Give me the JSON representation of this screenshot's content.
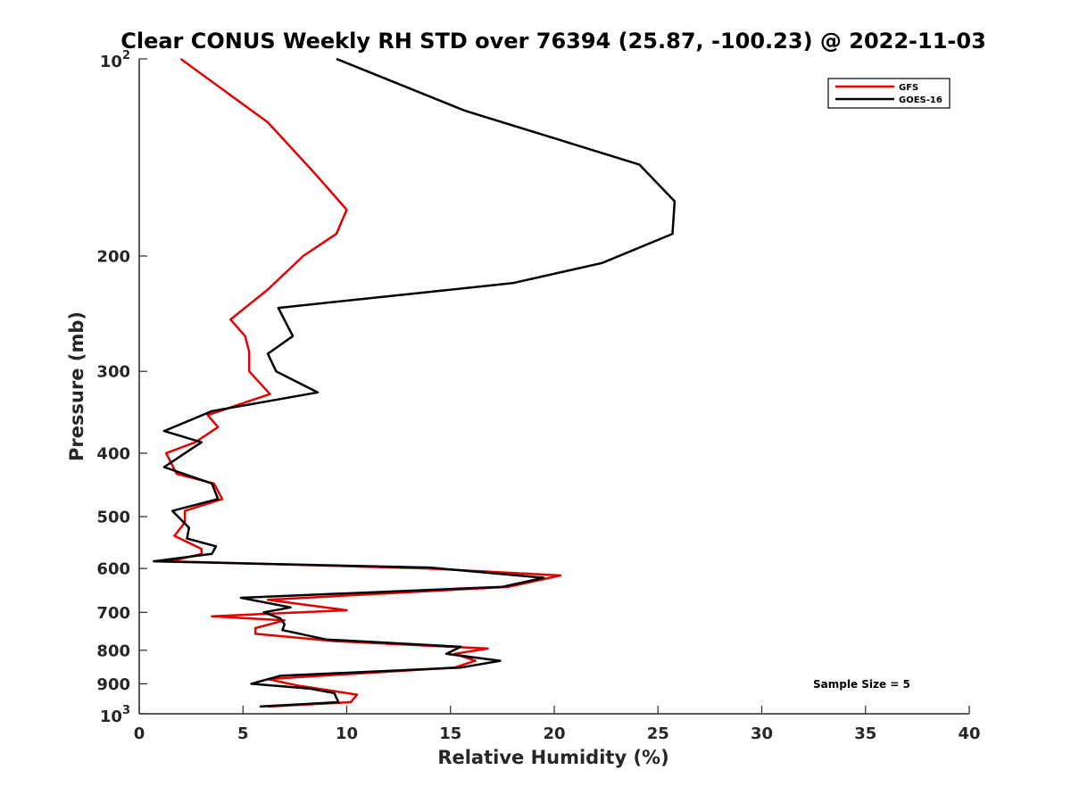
{
  "chart_data": {
    "type": "line",
    "title": "Clear CONUS Weekly RH STD over 76394 (25.87, -100.23) @ 2022-11-03",
    "xlabel": "Relative Humidity (%)",
    "ylabel": "Pressure (mb)",
    "xlim": [
      0,
      40
    ],
    "ylim": [
      100,
      1000
    ],
    "y_scale": "log",
    "y_reversed": true,
    "xticks": [
      0,
      5,
      10,
      15,
      20,
      25,
      30,
      35,
      40
    ],
    "xtick_labels": [
      "0",
      "5",
      "10",
      "15",
      "20",
      "25",
      "30",
      "35",
      "40"
    ],
    "yticks": [
      {
        "value": 100,
        "base": "10",
        "exp": "2"
      },
      {
        "value": 200,
        "label": "200"
      },
      {
        "value": 300,
        "label": "300"
      },
      {
        "value": 400,
        "label": "400"
      },
      {
        "value": 500,
        "label": "500"
      },
      {
        "value": 600,
        "label": "600"
      },
      {
        "value": 700,
        "label": "700"
      },
      {
        "value": 800,
        "label": "800"
      },
      {
        "value": 900,
        "label": "900"
      },
      {
        "value": 1000,
        "base": "10",
        "exp": "3"
      }
    ],
    "grid": false,
    "legend_position": "top-right",
    "annotation": "Sample Size = 5",
    "series": [
      {
        "name": "GFS",
        "color": "#e00000",
        "points": [
          [
            2.0,
            100
          ],
          [
            6.2,
            125
          ],
          [
            8.5,
            150
          ],
          [
            10.0,
            170
          ],
          [
            9.5,
            185
          ],
          [
            7.9,
            200
          ],
          [
            6.2,
            225
          ],
          [
            4.4,
            250
          ],
          [
            5.1,
            265
          ],
          [
            5.3,
            280
          ],
          [
            5.3,
            300
          ],
          [
            6.3,
            325
          ],
          [
            3.3,
            350
          ],
          [
            3.8,
            365
          ],
          [
            2.7,
            385
          ],
          [
            1.3,
            400
          ],
          [
            1.8,
            430
          ],
          [
            3.6,
            445
          ],
          [
            4.0,
            470
          ],
          [
            2.2,
            490
          ],
          [
            2.2,
            510
          ],
          [
            1.7,
            535
          ],
          [
            3.0,
            560
          ],
          [
            3.0,
            570
          ],
          [
            1.5,
            585
          ],
          [
            14.0,
            600
          ],
          [
            20.3,
            615
          ],
          [
            17.8,
            640
          ],
          [
            6.2,
            670
          ],
          [
            10.0,
            695
          ],
          [
            3.5,
            710
          ],
          [
            7.0,
            720
          ],
          [
            5.6,
            740
          ],
          [
            5.6,
            755
          ],
          [
            9.5,
            775
          ],
          [
            16.8,
            795
          ],
          [
            15.2,
            810
          ],
          [
            16.2,
            830
          ],
          [
            15.2,
            850
          ],
          [
            6.2,
            885
          ],
          [
            7.6,
            905
          ],
          [
            10.5,
            935
          ],
          [
            10.2,
            960
          ],
          [
            6.2,
            975
          ]
        ]
      },
      {
        "name": "GOES-16",
        "color": "#000000",
        "points": [
          [
            9.5,
            100
          ],
          [
            15.7,
            120
          ],
          [
            24.1,
            145
          ],
          [
            25.8,
            165
          ],
          [
            25.7,
            185
          ],
          [
            22.3,
            205
          ],
          [
            18.0,
            220
          ],
          [
            6.7,
            240
          ],
          [
            7.4,
            265
          ],
          [
            6.2,
            282
          ],
          [
            6.6,
            300
          ],
          [
            8.6,
            323
          ],
          [
            3.5,
            345
          ],
          [
            1.2,
            370
          ],
          [
            3.0,
            385
          ],
          [
            2.2,
            400
          ],
          [
            1.2,
            420
          ],
          [
            3.5,
            445
          ],
          [
            3.8,
            470
          ],
          [
            1.6,
            490
          ],
          [
            2.4,
            520
          ],
          [
            2.3,
            540
          ],
          [
            3.7,
            555
          ],
          [
            3.5,
            570
          ],
          [
            0.7,
            585
          ],
          [
            14.0,
            598
          ],
          [
            19.5,
            620
          ],
          [
            17.5,
            640
          ],
          [
            4.9,
            665
          ],
          [
            7.3,
            688
          ],
          [
            6.0,
            700
          ],
          [
            6.8,
            715
          ],
          [
            7.0,
            730
          ],
          [
            6.9,
            745
          ],
          [
            9.0,
            770
          ],
          [
            15.5,
            790
          ],
          [
            14.8,
            810
          ],
          [
            17.4,
            830
          ],
          [
            15.5,
            850
          ],
          [
            6.8,
            875
          ],
          [
            5.4,
            900
          ],
          [
            8.2,
            915
          ],
          [
            9.4,
            930
          ],
          [
            9.6,
            960
          ],
          [
            5.8,
            975
          ]
        ]
      }
    ]
  }
}
